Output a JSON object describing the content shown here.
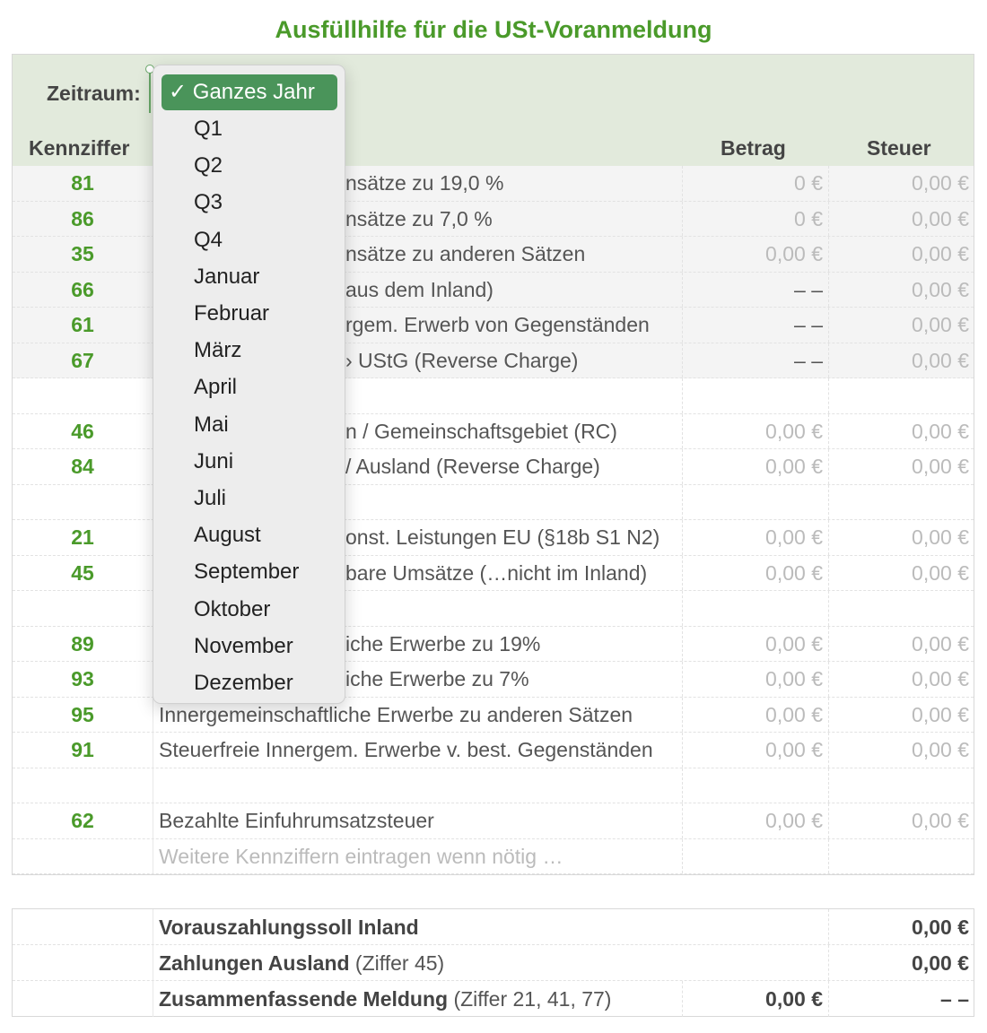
{
  "title": "Ausfüllhilfe für die USt-Voranmeldung",
  "header": {
    "zeitraum_label": "Zeitraum:",
    "col_kennziffer": "Kennziffer",
    "col_betrag": "Betrag",
    "col_steuer": "Steuer"
  },
  "dropdown": {
    "selected": "Ganzes Jahr",
    "check": "✓",
    "options": [
      "Q1",
      "Q2",
      "Q3",
      "Q4",
      "Januar",
      "Februar",
      "März",
      "April",
      "Mai",
      "Juni",
      "Juli",
      "August",
      "September",
      "Oktober",
      "November",
      "Dezember"
    ]
  },
  "rows": [
    {
      "k": "81",
      "d": "nsätze zu 19,0 %",
      "b": "0 €",
      "s": "0,00 €",
      "shaded": true,
      "hidden": true
    },
    {
      "k": "86",
      "d": "nsätze zu 7,0 %",
      "b": "0 €",
      "s": "0,00 €",
      "shaded": true,
      "hidden": true
    },
    {
      "k": "35",
      "d": "nsätze zu anderen Sätzen",
      "b": "0,00 €",
      "s": "0,00 €",
      "shaded": true,
      "hidden": true
    },
    {
      "k": "66",
      "d": "aus dem Inland)",
      "b": "– –",
      "s": "0,00 €",
      "shaded": true,
      "hidden": true
    },
    {
      "k": "61",
      "d": "rgem. Erwerb von Gegenständen",
      "b": "– –",
      "s": "0,00 €",
      "shaded": true,
      "hidden": true
    },
    {
      "k": "67",
      "d": "› UStG (Reverse Charge)",
      "b": "– –",
      "s": "0,00 €",
      "shaded": true,
      "hidden": true
    },
    {
      "k": "",
      "d": "",
      "b": "",
      "s": ""
    },
    {
      "k": "46",
      "d": "n / Gemeinschaftsgebiet (RC)",
      "b": "0,00 €",
      "s": "0,00 €",
      "hidden": true
    },
    {
      "k": "84",
      "d": "/ Ausland (Reverse Charge)",
      "b": "0,00 €",
      "s": "0,00 €",
      "hidden": true
    },
    {
      "k": "",
      "d": "",
      "b": "",
      "s": ""
    },
    {
      "k": "21",
      "d": "onst. Leistungen EU (§18b S1 N2)",
      "b": "0,00 €",
      "s": "0,00 €",
      "hidden": true
    },
    {
      "k": "45",
      "d": "bare Umsätze (…nicht im Inland)",
      "b": "0,00 €",
      "s": "0,00 €",
      "hidden": true
    },
    {
      "k": "",
      "d": "",
      "b": "",
      "s": ""
    },
    {
      "k": "89",
      "d": "iche Erwerbe zu 19%",
      "b": "0,00 €",
      "s": "0,00 €",
      "hidden": true
    },
    {
      "k": "93",
      "d": "iche Erwerbe zu 7%",
      "b": "0,00 €",
      "s": "0,00 €",
      "hidden": true
    },
    {
      "k": "95",
      "d": "Innergemeinschaftliche Erwerbe zu anderen Sätzen",
      "b": "0,00 €",
      "s": "0,00 €"
    },
    {
      "k": "91",
      "d": "Steuerfreie Innergem. Erwerbe v. best. Gegenständen",
      "b": "0,00 €",
      "s": "0,00 €"
    },
    {
      "k": "",
      "d": "",
      "b": "",
      "s": ""
    },
    {
      "k": "62",
      "d": "Bezahlte Einfuhrumsatzsteuer",
      "b": "0,00 €",
      "s": "0,00 €"
    },
    {
      "k": "",
      "d": "Weitere Kennziffern eintragen wenn nötig …",
      "b": "",
      "s": "",
      "placeholder": true
    }
  ],
  "summary": [
    {
      "label": "Vorauszahlungssoll Inland",
      "note": "",
      "b": "",
      "s": "0,00 €"
    },
    {
      "label": "Zahlungen Ausland",
      "note": " (Ziffer 45)",
      "b": "",
      "s": "0,00 €"
    },
    {
      "label": "Zusammenfassende Meldung",
      "note": " (Ziffer 21, 41, 77)",
      "b": "0,00 €",
      "s": "– –"
    }
  ],
  "colors": {
    "accent": "#4a9a2a",
    "selected_bg": "#4a945a",
    "header_bg": "#e2eadc"
  }
}
